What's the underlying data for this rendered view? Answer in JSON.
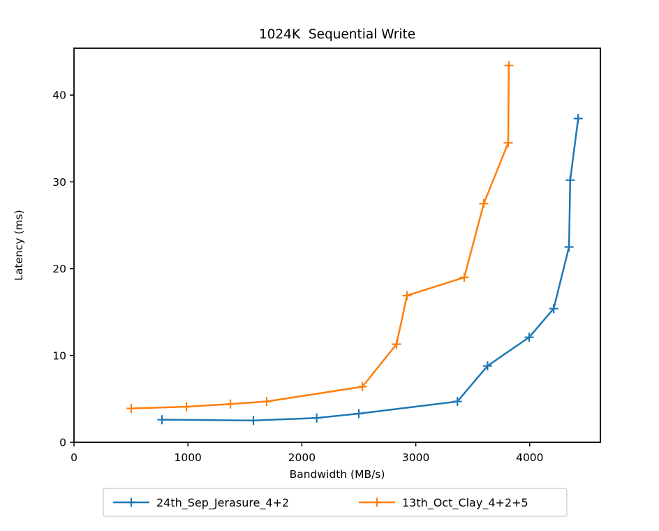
{
  "figure": {
    "background": "#ffffff"
  },
  "chart_data": {
    "type": "line",
    "title": "1024K  Sequential Write",
    "xlabel": "Bandwidth (MB/s)",
    "ylabel": "Latency (ms)",
    "xlim": [
      0,
      4620
    ],
    "ylim": [
      0,
      45.4
    ],
    "x_ticks": [
      0,
      1000,
      2000,
      3000,
      4000
    ],
    "y_ticks": [
      0,
      10,
      20,
      30,
      40
    ],
    "grid": false,
    "marker": "plus",
    "legend_position": "bottom-center-outside",
    "series": [
      {
        "name": "24th_Sep_Jerasure_4+2",
        "color": "#1f77b4",
        "points": [
          [
            772,
            2.6
          ],
          [
            1575,
            2.5
          ],
          [
            2130,
            2.8
          ],
          [
            2500,
            3.3
          ],
          [
            3365,
            4.7
          ],
          [
            3630,
            8.8
          ],
          [
            3995,
            12.1
          ],
          [
            4210,
            15.4
          ],
          [
            4345,
            22.5
          ],
          [
            4355,
            30.2
          ],
          [
            4425,
            37.3
          ]
        ]
      },
      {
        "name": "13th_Oct_Clay_4+2+5",
        "color": "#ff7f0e",
        "points": [
          [
            502,
            3.9
          ],
          [
            987,
            4.1
          ],
          [
            1373,
            4.4
          ],
          [
            1691,
            4.7
          ],
          [
            2531,
            6.4
          ],
          [
            2831,
            11.3
          ],
          [
            2923,
            16.9
          ],
          [
            3425,
            19.0
          ],
          [
            3597,
            27.5
          ],
          [
            3811,
            34.5
          ],
          [
            3817,
            43.4
          ]
        ]
      }
    ]
  },
  "colors": {
    "axis": "#000000",
    "legend_border": "#cccccc",
    "legend_background": "#ffffff"
  }
}
